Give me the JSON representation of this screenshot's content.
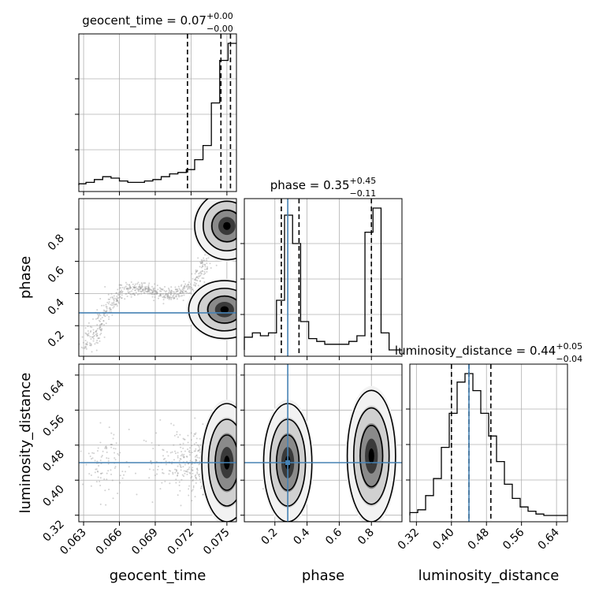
{
  "chart_data": {
    "type": "corner",
    "parameters": [
      "geocent_time",
      "phase",
      "luminosity_distance"
    ],
    "axis_labels": [
      "geocent_time",
      "phase",
      "luminosity_distance"
    ],
    "titles": [
      {
        "name": "geocent_time",
        "median": "0.07",
        "plus": "+0.00",
        "minus": "−0.00"
      },
      {
        "name": "phase",
        "median": "0.35",
        "plus": "+0.45",
        "minus": "−0.11"
      },
      {
        "name": "luminosity_distance",
        "median": "0.44",
        "plus": "+0.05",
        "minus": "−0.04"
      }
    ],
    "ranges": {
      "geocent_time": [
        0.0626,
        0.0758
      ],
      "phase": [
        0.01,
        0.99
      ],
      "luminosity_distance": [
        0.305,
        0.665
      ]
    },
    "ticks": {
      "geocent_time": [
        "0.063",
        "0.066",
        "0.069",
        "0.072",
        "0.075"
      ],
      "phase": [
        "0.2",
        "0.4",
        "0.6",
        "0.8"
      ],
      "luminosity_distance": [
        "0.32",
        "0.40",
        "0.48",
        "0.56",
        "0.64"
      ]
    },
    "truths": {
      "geocent_time": null,
      "phase": 0.28,
      "luminosity_distance": 0.44
    },
    "quantiles": {
      "geocent_time": [
        0.0717,
        0.0745,
        0.0753
      ],
      "phase": [
        0.24,
        0.35,
        0.8
      ],
      "luminosity_distance": [
        0.4,
        0.44,
        0.49
      ]
    },
    "histograms": {
      "geocent_time": {
        "edges": [
          0.0626,
          0.0632,
          0.0639,
          0.0646,
          0.0653,
          0.066,
          0.0667,
          0.0674,
          0.0681,
          0.0688,
          0.0695,
          0.0702,
          0.0709,
          0.0716,
          0.0723,
          0.073,
          0.0737,
          0.0744,
          0.0751,
          0.0758
        ],
        "counts": [
          1,
          2,
          4,
          6,
          5,
          3,
          2,
          2,
          3,
          4,
          6,
          8,
          9,
          11,
          18,
          28,
          58,
          88,
          100
        ]
      },
      "phase": {
        "edges": [
          0.01,
          0.06,
          0.11,
          0.16,
          0.21,
          0.26,
          0.31,
          0.36,
          0.41,
          0.46,
          0.51,
          0.56,
          0.61,
          0.66,
          0.71,
          0.76,
          0.81,
          0.86,
          0.91,
          0.96,
          0.99
        ],
        "counts": [
          9,
          12,
          10,
          12,
          35,
          95,
          75,
          20,
          8,
          6,
          4,
          4,
          4,
          6,
          10,
          83,
          100,
          12,
          0,
          0
        ]
      },
      "luminosity_distance": {
        "edges": [
          0.305,
          0.323,
          0.341,
          0.359,
          0.377,
          0.395,
          0.413,
          0.431,
          0.449,
          0.467,
          0.485,
          0.503,
          0.521,
          0.539,
          0.557,
          0.575,
          0.593,
          0.611,
          0.629,
          0.647,
          0.665
        ],
        "counts": [
          2,
          4,
          14,
          26,
          48,
          72,
          94,
          100,
          88,
          72,
          56,
          38,
          22,
          12,
          6,
          3,
          1,
          0,
          0,
          0
        ]
      }
    },
    "grid": true
  }
}
